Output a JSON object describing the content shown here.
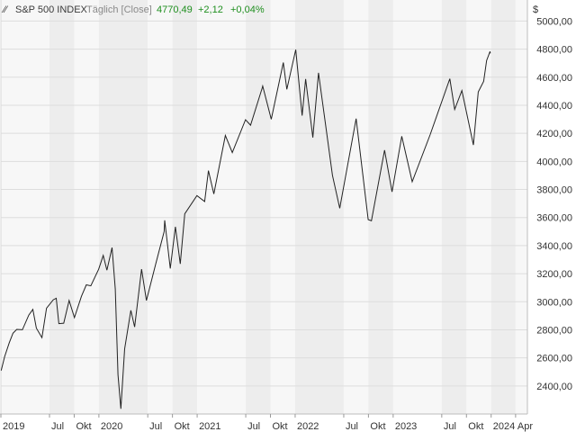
{
  "header": {
    "symbol": "S&P 500 INDEX",
    "interval": "Täglich [Close]",
    "last": "4770,49",
    "change": "+2,12",
    "change_pct": "+0,04%"
  },
  "chart_data": {
    "type": "line",
    "currency_unit": "$",
    "ylim": [
      2200,
      5150
    ],
    "y_ticks": [
      "2400,00",
      "2600,00",
      "2800,00",
      "3000,00",
      "3200,00",
      "3400,00",
      "3600,00",
      "3800,00",
      "4000,00",
      "4200,00",
      "4400,00",
      "4600,00",
      "4800,00",
      "5000,00"
    ],
    "y_tick_values": [
      2400,
      2600,
      2800,
      3000,
      3200,
      3400,
      3600,
      3800,
      4000,
      4200,
      4400,
      4600,
      4800,
      5000
    ],
    "x_range": [
      "2019-01-01",
      "2024-05-15"
    ],
    "x_ticks": [
      {
        "date": "2019-01-01",
        "label": "2019"
      },
      {
        "date": "2019-07-01",
        "label": "Jul"
      },
      {
        "date": "2019-10-01",
        "label": "Okt"
      },
      {
        "date": "2020-01-01",
        "label": "2020"
      },
      {
        "date": "2020-07-01",
        "label": "Jul"
      },
      {
        "date": "2020-10-01",
        "label": "Okt"
      },
      {
        "date": "2021-01-01",
        "label": "2021"
      },
      {
        "date": "2021-07-01",
        "label": "Jul"
      },
      {
        "date": "2021-10-01",
        "label": "Okt"
      },
      {
        "date": "2022-01-01",
        "label": "2022"
      },
      {
        "date": "2022-07-01",
        "label": "Jul"
      },
      {
        "date": "2022-10-01",
        "label": "Okt"
      },
      {
        "date": "2023-01-01",
        "label": "2023"
      },
      {
        "date": "2023-07-01",
        "label": "Jul"
      },
      {
        "date": "2023-10-01",
        "label": "Okt"
      },
      {
        "date": "2024-01-01",
        "label": "2024"
      },
      {
        "date": "2024-04-01",
        "label": "Apr"
      }
    ],
    "grid": true,
    "series": [
      {
        "color": "#222222",
        "points": [
          [
            "2019-01-02",
            2510
          ],
          [
            "2019-01-15",
            2610
          ],
          [
            "2019-02-01",
            2706
          ],
          [
            "2019-02-15",
            2775
          ],
          [
            "2019-03-01",
            2803
          ],
          [
            "2019-03-22",
            2800
          ],
          [
            "2019-04-15",
            2905
          ],
          [
            "2019-04-30",
            2945
          ],
          [
            "2019-05-13",
            2812
          ],
          [
            "2019-06-03",
            2744
          ],
          [
            "2019-06-20",
            2954
          ],
          [
            "2019-07-15",
            3014
          ],
          [
            "2019-07-26",
            3025
          ],
          [
            "2019-08-05",
            2844
          ],
          [
            "2019-08-23",
            2847
          ],
          [
            "2019-09-12",
            3009
          ],
          [
            "2019-10-02",
            2887
          ],
          [
            "2019-10-28",
            3039
          ],
          [
            "2019-11-15",
            3120
          ],
          [
            "2019-12-02",
            3113
          ],
          [
            "2019-12-31",
            3231
          ],
          [
            "2020-01-17",
            3330
          ],
          [
            "2020-01-31",
            3225
          ],
          [
            "2020-02-19",
            3386
          ],
          [
            "2020-03-02",
            3090
          ],
          [
            "2020-03-12",
            2480
          ],
          [
            "2020-03-23",
            2237
          ],
          [
            "2020-04-06",
            2664
          ],
          [
            "2020-04-29",
            2939
          ],
          [
            "2020-05-13",
            2820
          ],
          [
            "2020-06-08",
            3232
          ],
          [
            "2020-06-26",
            3009
          ],
          [
            "2020-07-31",
            3271
          ],
          [
            "2020-08-31",
            3500
          ],
          [
            "2020-09-02",
            3580
          ],
          [
            "2020-09-23",
            3237
          ],
          [
            "2020-10-12",
            3534
          ],
          [
            "2020-10-30",
            3270
          ],
          [
            "2020-11-16",
            3626
          ],
          [
            "2020-12-31",
            3756
          ],
          [
            "2021-01-29",
            3714
          ],
          [
            "2021-02-12",
            3934
          ],
          [
            "2021-03-04",
            3768
          ],
          [
            "2021-04-16",
            4185
          ],
          [
            "2021-05-12",
            4063
          ],
          [
            "2021-06-30",
            4297
          ],
          [
            "2021-07-19",
            4258
          ],
          [
            "2021-08-31",
            4522
          ],
          [
            "2021-09-02",
            4537
          ],
          [
            "2021-10-04",
            4300
          ],
          [
            "2021-11-18",
            4704
          ],
          [
            "2021-12-01",
            4513
          ],
          [
            "2022-01-03",
            4796
          ],
          [
            "2022-01-27",
            4326
          ],
          [
            "2022-02-09",
            4587
          ],
          [
            "2022-03-08",
            4170
          ],
          [
            "2022-03-29",
            4631
          ],
          [
            "2022-05-20",
            3901
          ],
          [
            "2022-06-16",
            3666
          ],
          [
            "2022-08-16",
            4305
          ],
          [
            "2022-09-30",
            3585
          ],
          [
            "2022-10-12",
            3577
          ],
          [
            "2022-11-30",
            4080
          ],
          [
            "2022-12-28",
            3783
          ],
          [
            "2023-02-02",
            4179
          ],
          [
            "2023-03-13",
            3855
          ],
          [
            "2023-05-19",
            4191
          ],
          [
            "2023-07-31",
            4589
          ],
          [
            "2023-08-18",
            4370
          ],
          [
            "2023-09-14",
            4505
          ],
          [
            "2023-10-27",
            4117
          ],
          [
            "2023-11-14",
            4495
          ],
          [
            "2023-12-04",
            4570
          ],
          [
            "2023-12-15",
            4719
          ],
          [
            "2023-12-28",
            4783
          ],
          [
            "2023-12-29",
            4770
          ]
        ]
      }
    ]
  }
}
